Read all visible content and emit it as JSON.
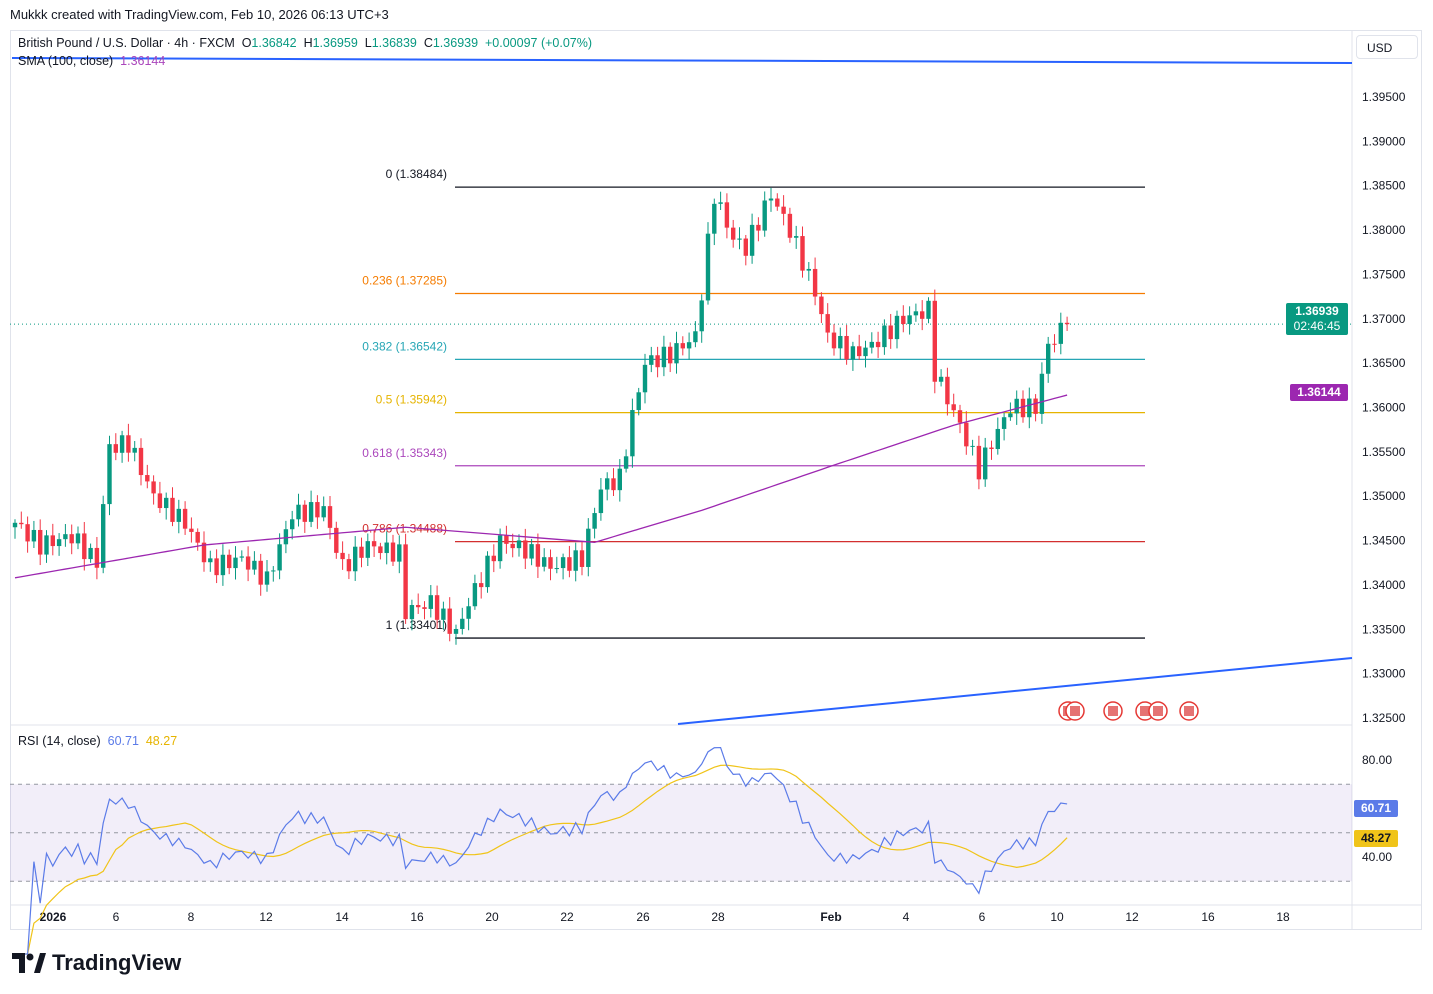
{
  "credit": "Mukkk created with TradingView.com, Feb 10, 2026 06:13 UTC+3",
  "header": {
    "symbol": "British Pound / U.S. Dollar · 4h · FXCM",
    "o_label": "O",
    "o": "1.36842",
    "h_label": "H",
    "h": "1.36959",
    "l_label": "L",
    "l": "1.36839",
    "c_label": "C",
    "c": "1.36939",
    "change": "+0.00097 (+0.07%)"
  },
  "sma": {
    "label": "SMA (100, close)",
    "value": "1.36144"
  },
  "rsi": {
    "label": "RSI (14, close)",
    "value": "60.71",
    "ma_value": "48.27"
  },
  "currency": "USD",
  "price_tag": {
    "price": "1.36939",
    "countdown": "02:46:45"
  },
  "sma_tag": "1.36144",
  "logo": "TradingView",
  "colors": {
    "up": "#089981",
    "down": "#f23645",
    "sma": "#9c27b0",
    "rsi": "#5b7be8",
    "rsi_ma": "#f0c419",
    "trend": "#2962ff"
  },
  "chart_data": {
    "type": "candlestick",
    "timeframe": "4h",
    "ylim": [
      1.325,
      1.3975
    ],
    "y_ticks": [
      "1.39500",
      "1.39000",
      "1.38500",
      "1.38000",
      "1.37500",
      "1.37000",
      "1.36500",
      "1.36000",
      "1.35500",
      "1.35000",
      "1.34500",
      "1.34000",
      "1.33500",
      "1.33000",
      "1.32500"
    ],
    "x_ticks": [
      "2026",
      "6",
      "8",
      "12",
      "14",
      "16",
      "20",
      "22",
      "26",
      "28",
      "Feb",
      "4",
      "6",
      "10",
      "12",
      "16",
      "18"
    ],
    "candle_count": 168,
    "close_keypoints": [
      [
        0,
        1.347
      ],
      [
        4,
        1.3445
      ],
      [
        9,
        1.3455
      ],
      [
        13,
        1.3425
      ],
      [
        15,
        1.3555
      ],
      [
        18,
        1.356
      ],
      [
        22,
        1.35
      ],
      [
        27,
        1.347
      ],
      [
        31,
        1.342
      ],
      [
        36,
        1.343
      ],
      [
        40,
        1.3405
      ],
      [
        44,
        1.348
      ],
      [
        49,
        1.3485
      ],
      [
        52,
        1.342
      ],
      [
        56,
        1.3445
      ],
      [
        61,
        1.3435
      ],
      [
        62,
        1.337
      ],
      [
        66,
        1.338
      ],
      [
        70,
        1.3345
      ],
      [
        72,
        1.338
      ],
      [
        77,
        1.345
      ],
      [
        81,
        1.344
      ],
      [
        85,
        1.342
      ],
      [
        90,
        1.343
      ],
      [
        93,
        1.351
      ],
      [
        96,
        1.352
      ],
      [
        98,
        1.359
      ],
      [
        100,
        1.365
      ],
      [
        104,
        1.366
      ],
      [
        108,
        1.368
      ],
      [
        109,
        1.373
      ],
      [
        111,
        1.384
      ],
      [
        114,
        1.379
      ],
      [
        116,
        1.378
      ],
      [
        120,
        1.384
      ],
      [
        123,
        1.38
      ],
      [
        127,
        1.373
      ],
      [
        129,
        1.368
      ],
      [
        133,
        1.366
      ],
      [
        136,
        1.367
      ],
      [
        141,
        1.37
      ],
      [
        145,
        1.371
      ],
      [
        146,
        1.364
      ],
      [
        150,
        1.358
      ],
      [
        153,
        1.353
      ],
      [
        155,
        1.356
      ],
      [
        158,
        1.36
      ],
      [
        162,
        1.36
      ],
      [
        164,
        1.367
      ],
      [
        167,
        1.36939
      ]
    ],
    "sma_keypoints": [
      [
        0,
        1.3408
      ],
      [
        30,
        1.3445
      ],
      [
        62,
        1.3465
      ],
      [
        92,
        1.3448
      ],
      [
        109,
        1.3484
      ],
      [
        130,
        1.3535
      ],
      [
        149,
        1.358
      ],
      [
        167,
        1.3614
      ]
    ],
    "fib": [
      {
        "label": "0 (1.38484)",
        "level": 1.38484,
        "color": "#131722"
      },
      {
        "label": "0.236 (1.37285)",
        "level": 1.37285,
        "color": "#f57c00"
      },
      {
        "label": "0.382 (1.36542)",
        "level": 1.36542,
        "color": "#26a6b5"
      },
      {
        "label": "0.5 (1.35942)",
        "level": 1.35942,
        "color": "#e6b400"
      },
      {
        "label": "0.618 (1.35343)",
        "level": 1.35343,
        "color": "#ab47bc"
      },
      {
        "label": "0.786 (1.34488)",
        "level": 1.34488,
        "color": "#d32f2f"
      },
      {
        "label": "1 (1.33401)",
        "level": 1.33401,
        "color": "#131722"
      }
    ],
    "rsi_ticks": [
      "80.00",
      "40.00"
    ],
    "rsi_bands": [
      70,
      50,
      30
    ]
  }
}
